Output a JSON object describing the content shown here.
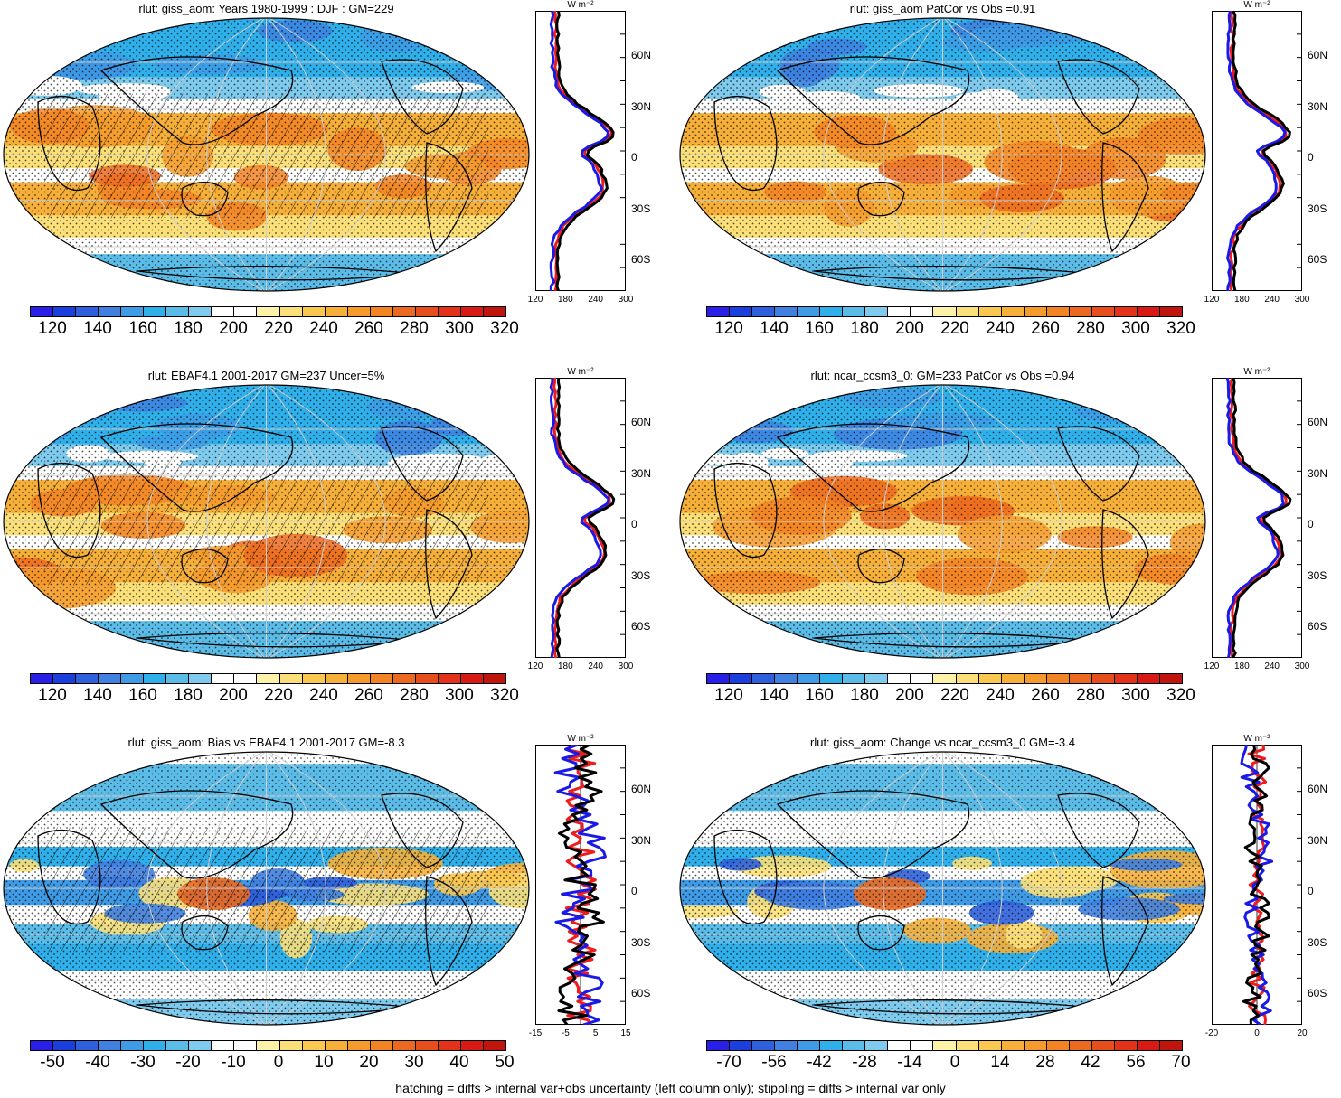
{
  "panels": [
    {
      "title": "rlut: giss_aom: Years 1980-1999 : DJF : GM=229",
      "palette": "abs",
      "hatch": true,
      "cb_ticks": [
        "120",
        "140",
        "160",
        "180",
        "200",
        "220",
        "240",
        "260",
        "280",
        "300",
        "320"
      ],
      "prof_x": [
        "120",
        "180",
        "240",
        "300"
      ],
      "prof_unit": "W m⁻²",
      "prof_kind": "abs"
    },
    {
      "title": "rlut: giss_aom PatCor vs Obs =0.91",
      "palette": "abs",
      "hatch": false,
      "cb_ticks": [
        "120",
        "140",
        "160",
        "180",
        "200",
        "220",
        "240",
        "260",
        "280",
        "300",
        "320"
      ],
      "prof_x": [
        "120",
        "180",
        "240",
        "300"
      ],
      "prof_unit": "W m⁻²",
      "prof_kind": "abs"
    },
    {
      "title": "rlut: EBAF4.1 2001-2017 GM=237 Uncer=5%",
      "palette": "abs",
      "hatch": true,
      "cb_ticks": [
        "120",
        "140",
        "160",
        "180",
        "200",
        "220",
        "240",
        "260",
        "280",
        "300",
        "320"
      ],
      "prof_x": [
        "120",
        "180",
        "240",
        "300"
      ],
      "prof_unit": "W m⁻²",
      "prof_kind": "abs"
    },
    {
      "title": "rlut: ncar_ccsm3_0: GM=233 PatCor vs Obs =0.94",
      "palette": "abs",
      "hatch": false,
      "cb_ticks": [
        "120",
        "140",
        "160",
        "180",
        "200",
        "220",
        "240",
        "260",
        "280",
        "300",
        "320"
      ],
      "prof_x": [
        "120",
        "180",
        "240",
        "300"
      ],
      "prof_unit": "W m⁻²",
      "prof_kind": "abs"
    },
    {
      "title": "rlut: giss_aom: Bias vs EBAF4.1 2001-2017 GM=-8.3",
      "palette": "diff",
      "hatch": true,
      "cb_ticks": [
        "-50",
        "-40",
        "-30",
        "-20",
        "-10",
        "0",
        "10",
        "20",
        "30",
        "40",
        "50"
      ],
      "prof_x": [
        "-15",
        "-5",
        "5",
        "15"
      ],
      "prof_unit": "W m⁻²",
      "prof_kind": "bias"
    },
    {
      "title": "rlut: giss_aom: Change vs ncar_ccsm3_0 GM=-3.4",
      "palette": "diff",
      "hatch": false,
      "cb_ticks": [
        "-70",
        "-56",
        "-42",
        "-28",
        "-14",
        "0",
        "14",
        "28",
        "42",
        "56",
        "70"
      ],
      "prof_x": [
        "-20",
        "0",
        "20"
      ],
      "prof_unit": "W m⁻²",
      "prof_kind": "change"
    }
  ],
  "lat_labels": [
    "60N",
    "30N",
    "0",
    "30S",
    "60S"
  ],
  "colors": {
    "abs_palette": [
      "#2a1fe6",
      "#1a3fdc",
      "#2f60dc",
      "#3f80e0",
      "#3f9be6",
      "#30b0ea",
      "#5bbce8",
      "#7ecbee",
      "#ffffff",
      "#ffffff",
      "#fdf3a8",
      "#fbe07a",
      "#f8c850",
      "#f6b03a",
      "#f59b2d",
      "#f28424",
      "#ec6a1f",
      "#e64f1b",
      "#e23217",
      "#d81a14",
      "#c0140f"
    ],
    "diff_palette": [
      "#2a1fe6",
      "#1a3fdc",
      "#2f60dc",
      "#3f80e0",
      "#3f9be6",
      "#30b0ea",
      "#5bbce8",
      "#7ecbee",
      "#ffffff",
      "#ffffff",
      "#fdf3a8",
      "#fbe07a",
      "#f8c850",
      "#f6b03a",
      "#f59b2d",
      "#f28424",
      "#ec6a1f",
      "#e64f1b",
      "#e23217",
      "#d81a14",
      "#c0140f"
    ],
    "line_black": "#000000",
    "line_red": "#ee1c1c",
    "line_blue": "#1a1ae6"
  },
  "footer": "hatching = diffs > internal var+obs uncertainty (left column only); stippling = diffs > internal var only"
}
